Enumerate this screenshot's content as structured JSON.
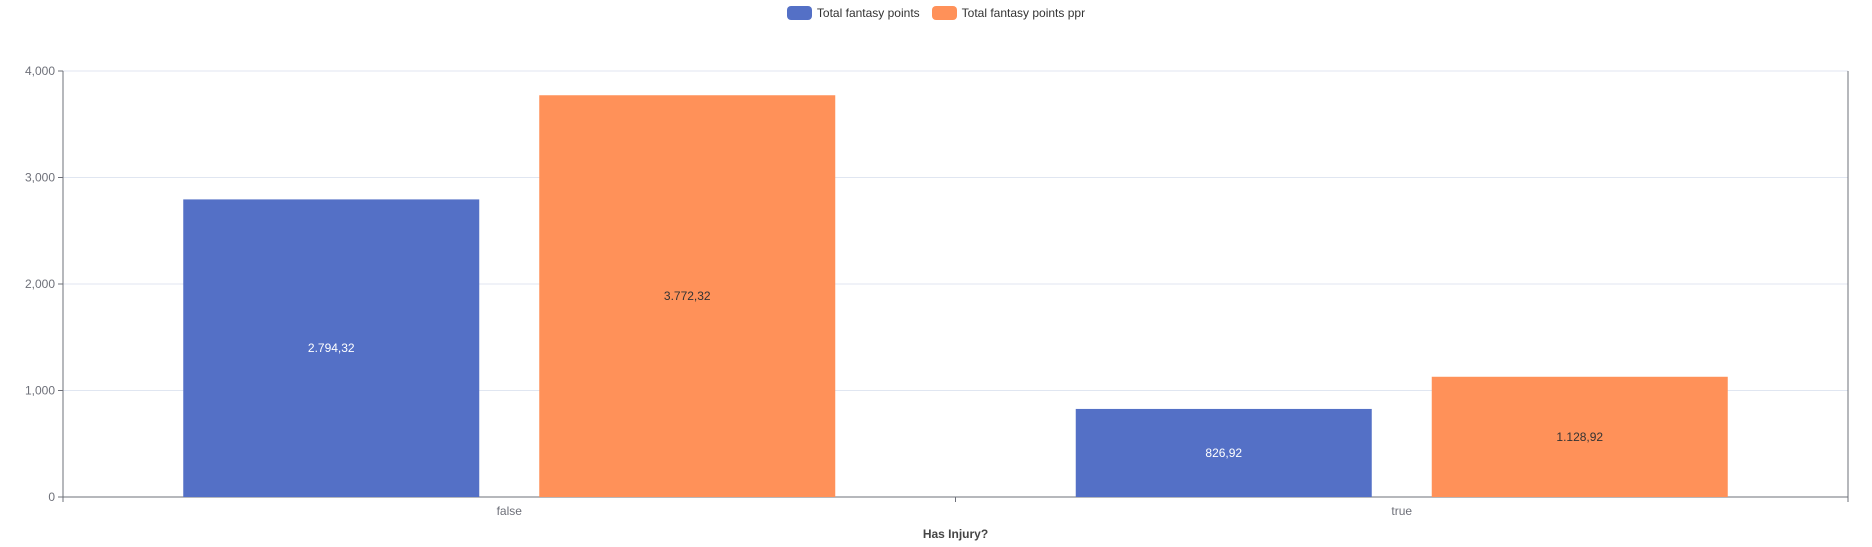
{
  "chart_data": {
    "type": "bar",
    "xlabel": "Has Injury?",
    "ylabel": "",
    "categories": [
      "false",
      "true"
    ],
    "ylim": [
      0,
      4000
    ],
    "yticks": [
      0,
      1000,
      2000,
      3000,
      4000
    ],
    "ytick_labels": [
      "0",
      "1,000",
      "2,000",
      "3,000",
      "4,000"
    ],
    "grid": true,
    "legend_position": "top-center",
    "series": [
      {
        "name": "Total fantasy points",
        "values": [
          2794.32,
          826.92
        ],
        "labels": [
          "2.794,32",
          "826,92"
        ],
        "color": "#5470c6",
        "label_color": "#ffffff"
      },
      {
        "name": "Total fantasy points ppr",
        "values": [
          3772.32,
          1128.92
        ],
        "labels": [
          "3.772,32",
          "1.128,92"
        ],
        "color": "#ff9159",
        "label_color": "#333333"
      }
    ]
  }
}
